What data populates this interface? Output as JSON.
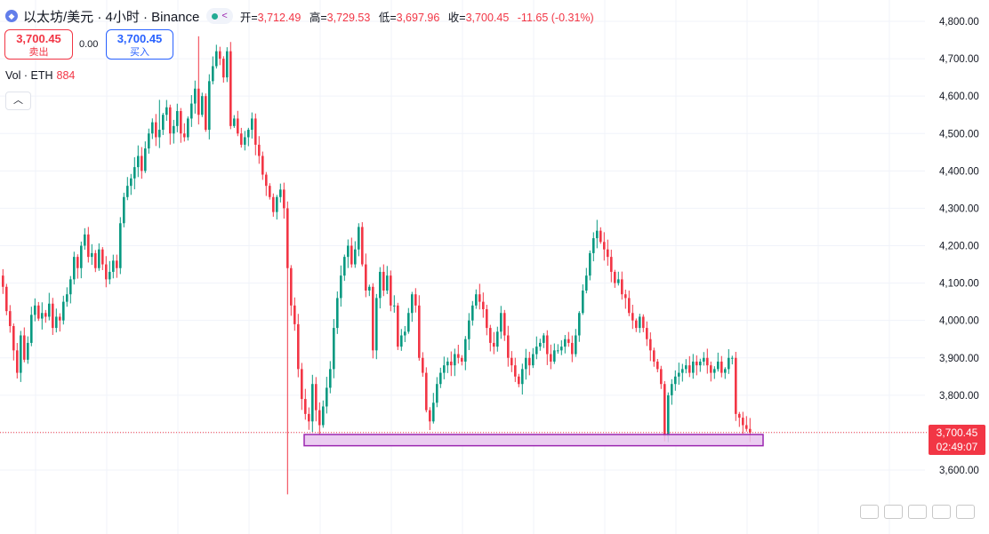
{
  "header": {
    "symbol_icon": "ethereum-icon",
    "title": "以太坊/美元 · 4小时 · Binance",
    "ohlc": [
      {
        "k": "开",
        "v": "3,712.49"
      },
      {
        "k": "高",
        "v": "3,729.53"
      },
      {
        "k": "低",
        "v": "3,697.96"
      },
      {
        "k": "收",
        "v": "3,700.45"
      }
    ],
    "change": "-11.65 (-0.31%)"
  },
  "trade": {
    "sell_price": "3,700.45",
    "sell_label": "卖出",
    "spread": "0.00",
    "buy_price": "3,700.45",
    "buy_label": "买入"
  },
  "volume": {
    "label": "Vol · ETH",
    "value": "884"
  },
  "last_price": {
    "price": "3,700.45",
    "countdown": "02:49:07"
  },
  "colors": {
    "up": "#089981",
    "down": "#f23645",
    "zone_fill": "#e8c4ee",
    "zone_border": "#9c27b0",
    "grid": "#f0f3fa"
  },
  "chart_data": {
    "type": "candlestick",
    "y_ticks": [
      3600,
      3700,
      3800,
      3900,
      4000,
      4100,
      4200,
      4300,
      4400,
      4500,
      4600,
      4700,
      4800
    ],
    "y_tick_labels": [
      "3,600.00",
      "3,700.00",
      "3,800.00",
      "3,900.00",
      "4,000.00",
      "4,100.00",
      "4,200.00",
      "4,300.00",
      "4,400.00",
      "4,500.00",
      "4,600.00",
      "4,700.00",
      "4,800.00"
    ],
    "ylim": [
      3530,
      4835
    ],
    "last_price": 3700.45,
    "support_zone": [
      3665,
      3695
    ],
    "closes": [
      4090,
      4025,
      3985,
      3920,
      3860,
      3960,
      3895,
      3940,
      4015,
      4040,
      4005,
      4020,
      4010,
      4045,
      3980,
      4010,
      4000,
      4050,
      4070,
      4110,
      4170,
      4140,
      4200,
      4230,
      4170,
      4180,
      4140,
      4190,
      4150,
      4110,
      4130,
      4160,
      4140,
      4260,
      4330,
      4360,
      4380,
      4410,
      4440,
      4400,
      4460,
      4500,
      4530,
      4490,
      4510,
      4550,
      4570,
      4500,
      4520,
      4560,
      4500,
      4490,
      4540,
      4580,
      4620,
      4550,
      4600,
      4510,
      4640,
      4680,
      4720,
      4700,
      4650,
      4720,
      4520,
      4540,
      4500,
      4470,
      4490,
      4510,
      4540,
      4470,
      4440,
      4390,
      4360,
      4330,
      4290,
      4330,
      4350,
      4300,
      4140,
      4040,
      3990,
      3870,
      3790,
      3750,
      3730,
      3830,
      3760,
      3720,
      3770,
      3820,
      3870,
      3980,
      4060,
      4120,
      4170,
      4200,
      4150,
      4190,
      4250,
      4150,
      4080,
      4090,
      3920,
      4060,
      4130,
      4080,
      4120,
      4040,
      4040,
      3930,
      3960,
      3970,
      4020,
      4070,
      4040,
      3900,
      3860,
      3760,
      3730,
      3780,
      3830,
      3860,
      3880,
      3890,
      3880,
      3910,
      3900,
      3890,
      3950,
      4000,
      4040,
      4070,
      4050,
      4030,
      3980,
      3940,
      3930,
      3970,
      4020,
      3960,
      3900,
      3880,
      3850,
      3830,
      3870,
      3900,
      3880,
      3910,
      3930,
      3940,
      3960,
      3910,
      3890,
      3920,
      3920,
      3930,
      3950,
      3940,
      3910,
      3960,
      4020,
      4080,
      4120,
      4180,
      4220,
      4240,
      4210,
      4190,
      4170,
      4130,
      4100,
      4110,
      4070,
      4060,
      4020,
      4000,
      3980,
      4010,
      3980,
      3950,
      3920,
      3890,
      3870,
      3830,
      3690,
      3800,
      3830,
      3850,
      3860,
      3870,
      3880,
      3860,
      3890,
      3880,
      3890,
      3900,
      3880,
      3860,
      3870,
      3890,
      3860,
      3870,
      3900,
      3900,
      3750,
      3740,
      3720,
      3710,
      3700
    ]
  }
}
